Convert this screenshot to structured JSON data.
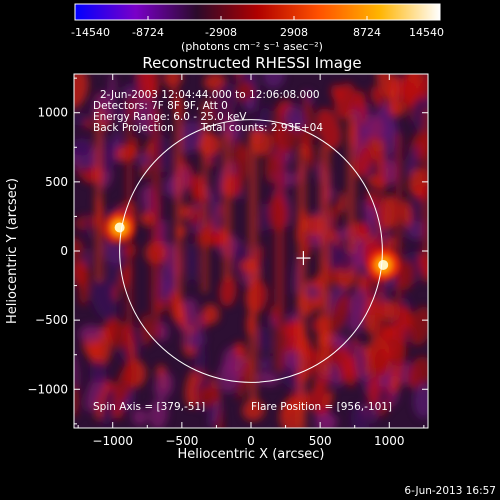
{
  "colorbar": {
    "tick_labels": [
      "-14540",
      "-8724",
      "-2908",
      "2908",
      "8724",
      "14540"
    ],
    "tick_values": [
      -14540,
      -8724,
      -2908,
      2908,
      8724,
      14540
    ],
    "range": [
      -14540,
      14540
    ],
    "unit_label": "(photons cm⁻² s⁻¹ asec⁻²)",
    "colors": [
      "#0000ff",
      "#7a00c8",
      "#2b0a2b",
      "#b00000",
      "#ff5000",
      "#ffb400",
      "#ffffff"
    ]
  },
  "chart_data": {
    "type": "heatmap",
    "title": "Reconstructed RHESSI Image",
    "xlabel": "Heliocentric X (arcsec)",
    "ylabel": "Heliocentric Y (arcsec)",
    "xlim": [
      -1280,
      1280
    ],
    "ylim": [
      -1280,
      1280
    ],
    "x_ticks": [
      -1000,
      -500,
      0,
      500,
      1000
    ],
    "y_ticks": [
      -1000,
      -500,
      0,
      500,
      1000
    ],
    "x_tick_labels": [
      "−1000",
      "−500",
      "0",
      "500",
      "1000"
    ],
    "y_tick_labels": [
      "−1000",
      "−500",
      "0",
      "500",
      "1000"
    ],
    "info_lines": [
      "2-Jun-2003 12:04:44.000 to 12:06:08.000",
      "Detectors: 7F 8F 9F, Att 0",
      "Energy Range: 6.0 - 25.0 keV",
      "Back Projection"
    ],
    "total_counts": "Total counts: 2.93E+04",
    "spin_axis_text": "Spin Axis = [379,-51]",
    "flare_position_text": "Flare Position = [956,-101]",
    "spin_axis": [
      379,
      -51
    ],
    "flare_position": [
      956,
      -101
    ],
    "sources": [
      {
        "x": 956,
        "y": -101,
        "intensity": 14540
      },
      {
        "x": -950,
        "y": 170,
        "intensity": 12000
      }
    ],
    "solar_limb_center": [
      0,
      0
    ],
    "solar_limb_radius": 950
  },
  "timestamp": "6-Jun-2013 16:57"
}
